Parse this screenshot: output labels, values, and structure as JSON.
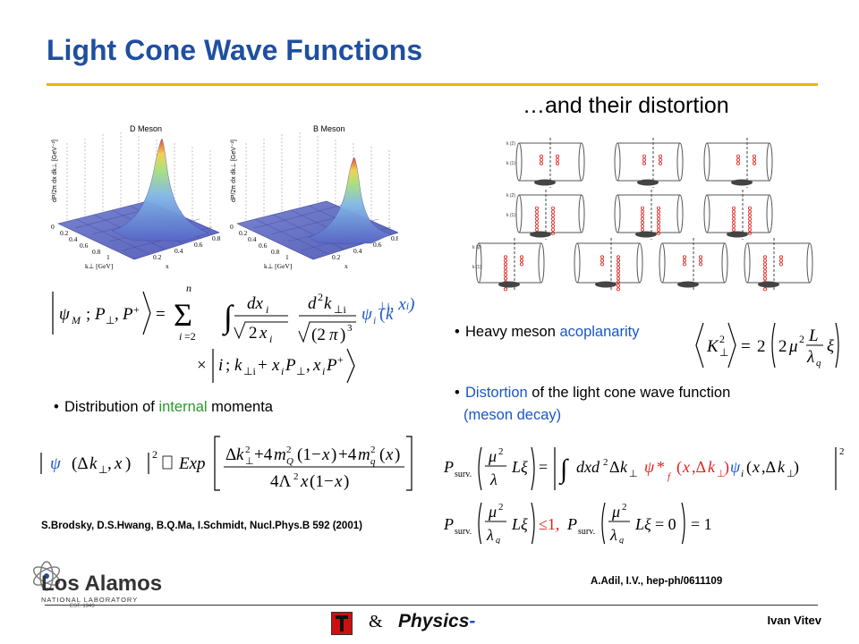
{
  "slide": {
    "title": "Light Cone Wave Functions",
    "subtitle": "…and their distortion"
  },
  "plots": {
    "left_title": "D Meson",
    "right_title": "B Meson",
    "z_label": "dP/2π dx dk⊥ [GeV⁻²]",
    "k_label": "k⊥ [GeV]",
    "x_label": "x",
    "k_ticks": [
      "0",
      "0.2",
      "0.4",
      "0.6",
      "0.8",
      "1"
    ],
    "x_ticks": [
      "0.2",
      "0.4",
      "0.6",
      "0.8"
    ]
  },
  "diagrams": {
    "row_labels": [
      "k (2)",
      "k (1)"
    ]
  },
  "bullets": {
    "b1_pre": "Heavy meson ",
    "b1_hl": "acoplanarity",
    "b2_hl": "Distortion",
    "b2_post": " of the light cone wave function",
    "b2_line2": "(meson decay)",
    "b3_pre": "Distribution of ",
    "b3_hl": "internal",
    "b3_post": " momenta"
  },
  "references": {
    "left": "S.Brodsky, D.S.Hwang, B.Q.Ma, I.Schmidt, Nucl.Phys.B 592 (2001)",
    "right": "A.Adil, I.V., hep-ph/0611109"
  },
  "footer": {
    "lab_name": "Los Alamos",
    "lab_sub": "NATIONAL LABORATORY",
    "lab_est": "EST. 1943",
    "amp": "&",
    "physics": "Physics",
    "author": "Ivan Vitev"
  },
  "colors": {
    "title": "#1f4fa0",
    "rule": "#f0b400",
    "highlight_blue": "#1a56c8",
    "highlight_green": "#2b9a2b",
    "formula_red": "#e0201a"
  }
}
